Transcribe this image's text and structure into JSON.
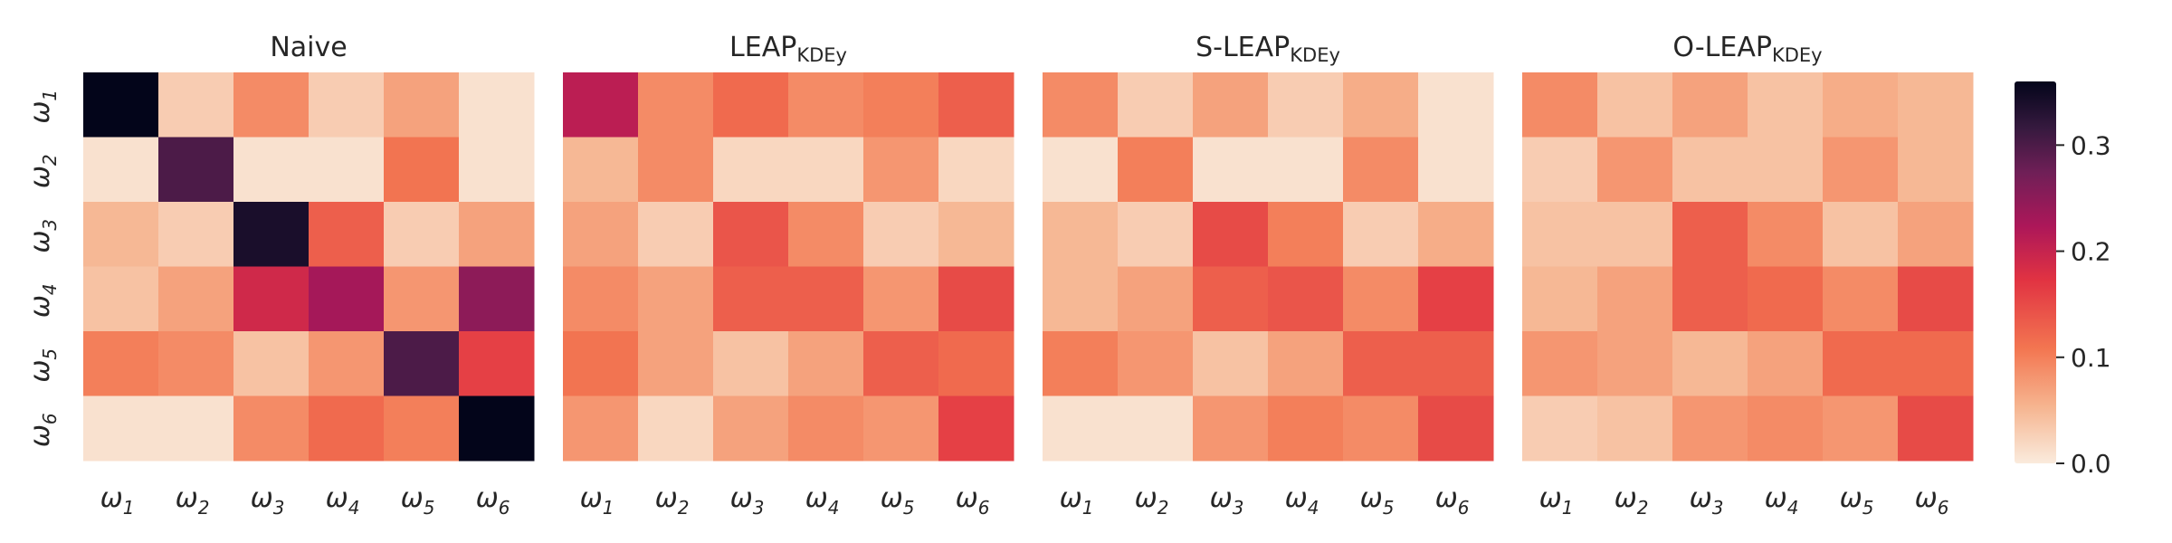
{
  "figure_type": "heatmap-grid",
  "colormap": "rocket_r",
  "colors": {
    "low": "#faebdd",
    "mid_low": "#f6b48f",
    "mid": "#f37651",
    "mid_high": "#e13342",
    "high_mid": "#ad1759",
    "high": "#701f57",
    "top": "#35193e",
    "max": "#03051a"
  },
  "chart_data": [
    {
      "type": "heatmap",
      "title": "Naive",
      "title_sub": "",
      "row_labels": [
        {
          "base": "ω",
          "sub": "1"
        },
        {
          "base": "ω",
          "sub": "2"
        },
        {
          "base": "ω",
          "sub": "3"
        },
        {
          "base": "ω",
          "sub": "4"
        },
        {
          "base": "ω",
          "sub": "5"
        },
        {
          "base": "ω",
          "sub": "6"
        }
      ],
      "col_labels": [
        {
          "base": "ω",
          "sub": "1"
        },
        {
          "base": "ω",
          "sub": "2"
        },
        {
          "base": "ω",
          "sub": "3"
        },
        {
          "base": "ω",
          "sub": "4"
        },
        {
          "base": "ω",
          "sub": "5"
        },
        {
          "base": "ω",
          "sub": "6"
        }
      ],
      "values": [
        [
          0.36,
          0.03,
          0.09,
          0.03,
          0.07,
          0.01
        ],
        [
          0.01,
          0.3,
          0.01,
          0.01,
          0.11,
          0.01
        ],
        [
          0.05,
          0.03,
          0.34,
          0.13,
          0.03,
          0.07
        ],
        [
          0.04,
          0.07,
          0.19,
          0.23,
          0.08,
          0.25
        ],
        [
          0.1,
          0.09,
          0.04,
          0.08,
          0.3,
          0.16
        ],
        [
          0.01,
          0.01,
          0.09,
          0.12,
          0.1,
          0.36
        ]
      ]
    },
    {
      "type": "heatmap",
      "title": "LEAP",
      "title_sub": "KDEy",
      "row_labels": [],
      "col_labels": [
        {
          "base": "ω",
          "sub": "1"
        },
        {
          "base": "ω",
          "sub": "2"
        },
        {
          "base": "ω",
          "sub": "3"
        },
        {
          "base": "ω",
          "sub": "4"
        },
        {
          "base": "ω",
          "sub": "5"
        },
        {
          "base": "ω",
          "sub": "6"
        }
      ],
      "values": [
        [
          0.21,
          0.09,
          0.12,
          0.09,
          0.1,
          0.13
        ],
        [
          0.05,
          0.09,
          0.02,
          0.02,
          0.08,
          0.02
        ],
        [
          0.07,
          0.03,
          0.14,
          0.09,
          0.03,
          0.05
        ],
        [
          0.09,
          0.07,
          0.13,
          0.13,
          0.08,
          0.15
        ],
        [
          0.11,
          0.07,
          0.04,
          0.07,
          0.13,
          0.12
        ],
        [
          0.08,
          0.02,
          0.07,
          0.09,
          0.08,
          0.16
        ]
      ]
    },
    {
      "type": "heatmap",
      "title": "S-LEAP",
      "title_sub": "KDEy",
      "row_labels": [],
      "col_labels": [
        {
          "base": "ω",
          "sub": "1"
        },
        {
          "base": "ω",
          "sub": "2"
        },
        {
          "base": "ω",
          "sub": "3"
        },
        {
          "base": "ω",
          "sub": "4"
        },
        {
          "base": "ω",
          "sub": "5"
        },
        {
          "base": "ω",
          "sub": "6"
        }
      ],
      "values": [
        [
          0.09,
          0.03,
          0.07,
          0.03,
          0.06,
          0.01
        ],
        [
          0.01,
          0.1,
          0.01,
          0.01,
          0.09,
          0.01
        ],
        [
          0.05,
          0.03,
          0.15,
          0.1,
          0.03,
          0.06
        ],
        [
          0.05,
          0.07,
          0.13,
          0.14,
          0.09,
          0.16
        ],
        [
          0.1,
          0.08,
          0.04,
          0.07,
          0.13,
          0.13
        ],
        [
          0.01,
          0.01,
          0.08,
          0.1,
          0.09,
          0.15
        ]
      ]
    },
    {
      "type": "heatmap",
      "title": "O-LEAP",
      "title_sub": "KDEy",
      "row_labels": [],
      "col_labels": [
        {
          "base": "ω",
          "sub": "1"
        },
        {
          "base": "ω",
          "sub": "2"
        },
        {
          "base": "ω",
          "sub": "3"
        },
        {
          "base": "ω",
          "sub": "4"
        },
        {
          "base": "ω",
          "sub": "5"
        },
        {
          "base": "ω",
          "sub": "6"
        }
      ],
      "values": [
        [
          0.09,
          0.04,
          0.07,
          0.04,
          0.06,
          0.05
        ],
        [
          0.03,
          0.08,
          0.04,
          0.04,
          0.08,
          0.05
        ],
        [
          0.04,
          0.04,
          0.13,
          0.09,
          0.04,
          0.07
        ],
        [
          0.05,
          0.07,
          0.13,
          0.12,
          0.09,
          0.15
        ],
        [
          0.08,
          0.07,
          0.05,
          0.07,
          0.12,
          0.12
        ],
        [
          0.03,
          0.04,
          0.08,
          0.09,
          0.08,
          0.15
        ]
      ]
    }
  ],
  "colorbar": {
    "range": [
      0.0,
      0.36
    ],
    "ticks": [
      0.0,
      0.1,
      0.2,
      0.3
    ],
    "tick_labels": [
      "0.0",
      "0.1",
      "0.2",
      "0.3"
    ]
  }
}
